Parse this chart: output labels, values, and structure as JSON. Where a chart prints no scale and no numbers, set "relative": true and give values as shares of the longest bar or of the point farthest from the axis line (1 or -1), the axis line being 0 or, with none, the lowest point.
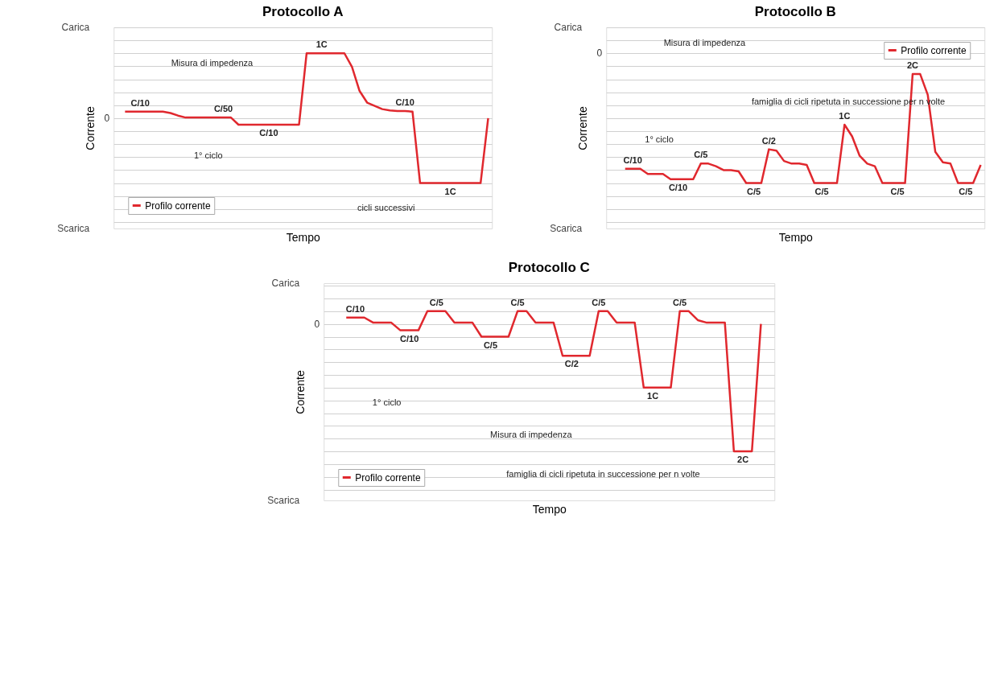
{
  "chart_data": [
    {
      "type": "line",
      "title": "Protocollo A",
      "xlabel": "Tempo",
      "ylabel": "Corrente",
      "relative": true,
      "grid": "y",
      "legend": "bottom left",
      "tick_labels": false,
      "categories": [
        null,
        null,
        null,
        null,
        null,
        null,
        null,
        null,
        null,
        null,
        null,
        null,
        null,
        null,
        null,
        null,
        null,
        null,
        null,
        null,
        null,
        null,
        null,
        null,
        null,
        null,
        null,
        null,
        null,
        null,
        null,
        null,
        null,
        null,
        null,
        null,
        null,
        null,
        null,
        null,
        null,
        null,
        null,
        null,
        null,
        null,
        null,
        null,
        null,
        null
      ],
      "series": [
        {
          "name": "Profilo corrente",
          "color": "#e0282e",
          "values": [
            null,
            0.1,
            0.1,
            0.1,
            0.1,
            0.1,
            0.1,
            0.08,
            0.04,
            0.01,
            0.01,
            0.01,
            0.01,
            0.01,
            0.01,
            0.01,
            -0.1,
            -0.1,
            -0.1,
            -0.1,
            -0.1,
            -0.1,
            -0.1,
            -0.1,
            -0.1,
            1.0,
            1.0,
            1.0,
            1.0,
            1.0,
            1.0,
            0.79,
            0.42,
            0.24,
            0.19,
            0.14,
            0.12,
            0.11,
            0.11,
            0.1,
            -1.0,
            -1.0,
            -1.0,
            -1.0,
            -1.0,
            -1.0,
            -1.0,
            -1.0,
            -1.0,
            0
          ]
        }
      ],
      "annotations": [
        "Carica",
        "Scarica",
        "0",
        "Misura di impedenza",
        "1° ciclo",
        "cicli successivi",
        "C/10",
        "C/50",
        "C/10",
        "1C",
        "C/10",
        "1C"
      ]
    },
    {
      "type": "line",
      "title": "Protocollo B",
      "xlabel": "Tempo",
      "ylabel": "Corrente",
      "relative": true,
      "grid": "y",
      "legend": "top right",
      "tick_labels": false,
      "categories": [
        null,
        null,
        null,
        null,
        null,
        null,
        null,
        null,
        null,
        null,
        null,
        null,
        null,
        null,
        null,
        null,
        null,
        null,
        null,
        null,
        null,
        null,
        null,
        null,
        null,
        null,
        null,
        null,
        null,
        null,
        null,
        null,
        null,
        null,
        null,
        null,
        null,
        null,
        null,
        null,
        null,
        null,
        null,
        null,
        null,
        null,
        null,
        null,
        null,
        null
      ],
      "series": [
        {
          "name": "Profilo corrente",
          "color": "#e0282e",
          "values": [
            null,
            null,
            -0.89,
            -0.89,
            -0.89,
            -0.93,
            -0.93,
            -0.93,
            -0.97,
            -0.97,
            -0.97,
            -0.97,
            -0.85,
            -0.85,
            -0.87,
            -0.9,
            -0.9,
            -0.91,
            -1.0,
            -1.0,
            -1.0,
            -0.74,
            -0.75,
            -0.83,
            -0.85,
            -0.85,
            -0.86,
            -1.0,
            -1.0,
            -1.0,
            -1.0,
            -0.55,
            -0.64,
            -0.79,
            -0.85,
            -0.87,
            -1.0,
            -1.0,
            -1.0,
            -1.0,
            -0.16,
            -0.16,
            -0.32,
            -0.76,
            -0.84,
            -0.85,
            -1.0,
            -1.0,
            -1.0,
            -0.86
          ]
        }
      ],
      "annotations": [
        "Carica",
        "Scarica",
        "0",
        "Misura di impedenza",
        "1° ciclo",
        "famiglia di cicli ripetuta in successione per n volte",
        "C/10",
        "C/10",
        "C/5",
        "C/5",
        "C/2",
        "C/5",
        "1C",
        "C/5",
        "2C",
        "C/5"
      ]
    },
    {
      "type": "line",
      "title": "Protocollo C",
      "xlabel": "Tempo",
      "ylabel": "Corrente",
      "relative": true,
      "grid": "y",
      "legend": "bottom left",
      "tick_labels": false,
      "categories": [
        null,
        null,
        null,
        null,
        null,
        null,
        null,
        null,
        null,
        null,
        null,
        null,
        null,
        null,
        null,
        null,
        null,
        null,
        null,
        null,
        null,
        null,
        null,
        null,
        null,
        null,
        null,
        null,
        null,
        null,
        null,
        null,
        null,
        null,
        null,
        null,
        null,
        null,
        null,
        null,
        null,
        null,
        null,
        null,
        null,
        null,
        null,
        null,
        null,
        null
      ],
      "series": [
        {
          "name": "Profilo corrente",
          "color": "#e0282e",
          "values": [
            null,
            null,
            0.05,
            0.05,
            0.05,
            0.01,
            0.01,
            0.01,
            -0.05,
            -0.05,
            -0.05,
            0.1,
            0.1,
            0.1,
            0.01,
            0.01,
            0.01,
            -0.1,
            -0.1,
            -0.1,
            -0.1,
            0.1,
            0.1,
            0.01,
            0.01,
            0.01,
            -0.25,
            -0.25,
            -0.25,
            -0.25,
            0.1,
            0.1,
            0.01,
            0.01,
            0.01,
            -0.5,
            -0.5,
            -0.5,
            -0.5,
            0.1,
            0.1,
            0.03,
            0.01,
            0.01,
            0.01,
            -1.0,
            -1.0,
            -1.0,
            0,
            null
          ]
        }
      ],
      "annotations": [
        "Carica",
        "Scarica",
        "0",
        "Misura di impedenza",
        "1° ciclo",
        "famiglia di cicli ripetuta in successione per n volte",
        "C/10",
        "C/10",
        "C/5",
        "C/5",
        "C/5",
        "C/2",
        "C/5",
        "1C",
        "C/5",
        "2C"
      ]
    }
  ]
}
